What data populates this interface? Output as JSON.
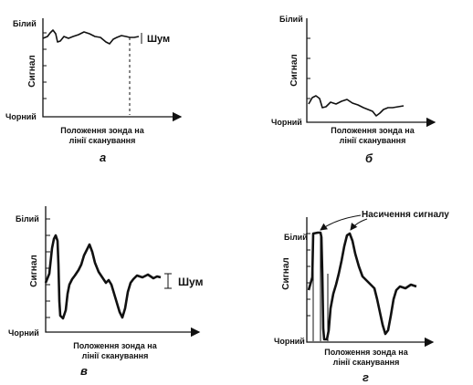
{
  "panels": [
    {
      "id": "a",
      "letter": "а",
      "y_top": "Білий",
      "y_bottom": "Чорний",
      "y_axis": "Сигнал",
      "x_line1": "Положення зонда на",
      "x_line2": "лінії сканування",
      "noise_label": "Шум"
    },
    {
      "id": "b",
      "letter": "б",
      "y_top": "Білий",
      "y_bottom": "Чорний",
      "y_axis": "Сигнал",
      "x_line1": "Положення зонда на",
      "x_line2": "лінії сканування"
    },
    {
      "id": "v",
      "letter": "в",
      "y_top": "Білий",
      "y_bottom": "Чорний",
      "y_axis": "Сигнал",
      "x_line1": "Положення зонда на",
      "x_line2": "лінії сканування",
      "noise_label": "Шум"
    },
    {
      "id": "g",
      "letter": "г",
      "y_top": "Білий",
      "y_bottom": "Чорний",
      "y_axis": "Сигнал",
      "x_line1": "Положення зонда на",
      "x_line2": "лінії сканування",
      "saturation_label": "Насичення сигналу"
    }
  ]
}
